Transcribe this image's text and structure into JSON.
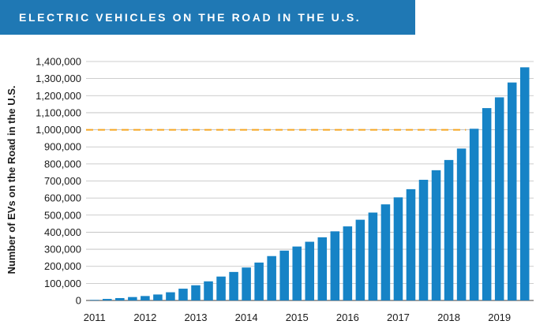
{
  "chart_data": {
    "type": "bar",
    "title": "ELECTRIC VEHICLES ON THE ROAD IN THE U.S.",
    "ylabel": "Number of EVs on the Road in the U.S.",
    "xlabel": "",
    "ylim": [
      0,
      1400000
    ],
    "yticks": [
      0,
      100000,
      200000,
      300000,
      400000,
      500000,
      600000,
      700000,
      800000,
      900000,
      1000000,
      1100000,
      1200000,
      1300000,
      1400000
    ],
    "ytick_labels": [
      "0",
      "100,000",
      "200,000",
      "300,000",
      "400,000",
      "500,000",
      "600,000",
      "700,000",
      "800,000",
      "900,000",
      "1,000,000",
      "1,100,000",
      "1,200,000",
      "1,300,000",
      "1,400,000"
    ],
    "xtick_labels": [
      "2011",
      "2012",
      "2013",
      "2014",
      "2015",
      "2016",
      "2017",
      "2018",
      "2019"
    ],
    "xtick_bar_index": [
      0,
      4,
      8,
      12,
      16,
      20,
      24,
      28,
      32
    ],
    "values": [
      3000,
      9000,
      14000,
      20000,
      26000,
      35000,
      48000,
      69000,
      89000,
      112000,
      140000,
      167000,
      193000,
      222000,
      260000,
      292000,
      316000,
      344000,
      370000,
      405000,
      434000,
      473000,
      515000,
      563000,
      604000,
      652000,
      707000,
      763000,
      823000,
      890000,
      1006000,
      1127000,
      1190000,
      1277000,
      1366000
    ],
    "reference_line": {
      "value": 1000000,
      "style": "dashed"
    },
    "grid": "horizontal",
    "colors": {
      "bar": "#1683c6",
      "reference": "#f5a623",
      "title_bg": "#1f78b4"
    }
  }
}
